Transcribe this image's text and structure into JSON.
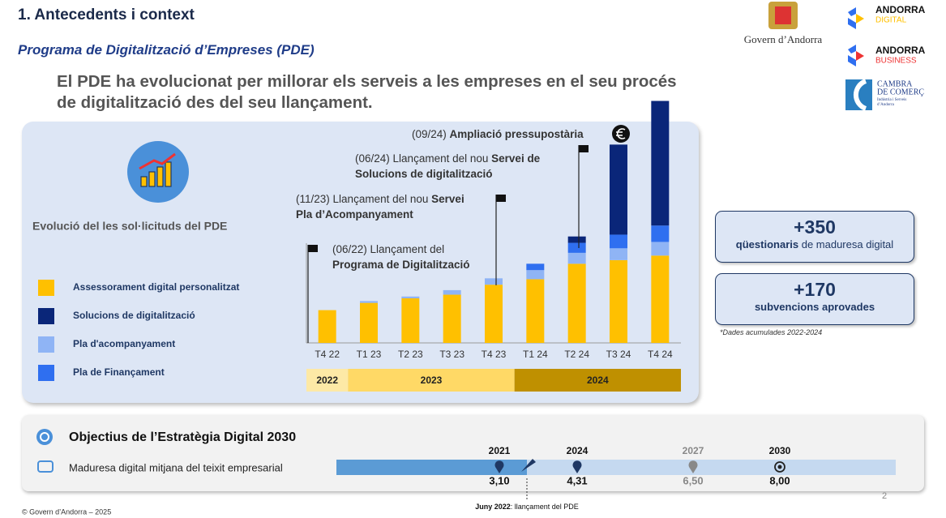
{
  "header": {
    "title": "1. Antecedents i context",
    "subtitle": "Programa de Digitalització d’Empreses (PDE)",
    "statement": "El PDE ha evolucionat per millorar els serveis a les empreses en el seu procés de digitalització des del seu llançament."
  },
  "logos": {
    "govern": "Govern d’Andorra",
    "digital": {
      "name": "ANDORRA",
      "sub": "DIGITAL"
    },
    "business": {
      "name": "ANDORRA",
      "sub": "BUSINESS"
    },
    "cambra": {
      "line1": "CAMBRA",
      "line2": "DE COMERÇ",
      "line3": "Indústria i Serveis",
      "line4": "d’Andorra"
    }
  },
  "panel": {
    "label": "Evolució del les sol·licituds del PDE"
  },
  "chart_data": {
    "type": "bar",
    "stacked": true,
    "categories": [
      "T4 22",
      "T1 23",
      "T2 23",
      "T3 23",
      "T4 23",
      "T1 24",
      "T2 24",
      "T3 24",
      "T4 24"
    ],
    "series": [
      {
        "name": "Assessorament digital personalitzat",
        "color": "#ffc000",
        "values": [
          36,
          44,
          49,
          53,
          64,
          70,
          87,
          91,
          96
        ]
      },
      {
        "name": "Solucions de digitalització",
        "color": "#0a2679",
        "values": [
          0,
          0,
          0,
          0,
          0,
          0,
          7,
          99,
          137
        ]
      },
      {
        "name": "Pla d'acompanyament",
        "color": "#8fb4f5",
        "values": [
          0,
          2,
          2,
          5,
          7,
          10,
          12,
          13,
          15
        ]
      },
      {
        "name": "Pla de Finançament",
        "color": "#2f6ff0",
        "values": [
          0,
          0,
          0,
          0,
          0,
          7,
          11,
          15,
          18
        ]
      }
    ],
    "ylim": [
      0,
      270
    ],
    "years": [
      {
        "label": "2022",
        "color": "#fde9a6"
      },
      {
        "label": "2023",
        "color": "#ffd966"
      },
      {
        "label": "2024",
        "color": "#bf9000"
      }
    ],
    "annotations": [
      {
        "date": "(06/22)",
        "text": "Llançament del",
        "bold": "Programa de Digitalització"
      },
      {
        "date": "(11/23)",
        "text": "Llançament del nou",
        "bold": "Servei Pla d’Acompanyament"
      },
      {
        "date": "(06/24)",
        "text": "Llançament del nou",
        "bold": "Servei de Solucions de digitalització"
      },
      {
        "date": "(09/24)",
        "bold": "Ampliació pressupostària"
      }
    ]
  },
  "kpis": [
    {
      "value": "+350",
      "bold": "qüestionaris",
      "text": "de maduresa digital"
    },
    {
      "value": "+170",
      "bold": "subvencions aprovades"
    }
  ],
  "kpi_note": "*Dades acumulades 2022-2024",
  "objectives": {
    "title": "Objectius de l’Estratègia Digital 2030",
    "row": "Maduresa digital mitjana del teixit empresarial",
    "milestones": [
      {
        "year": "2021",
        "value": "3,10"
      },
      {
        "year": "2024",
        "value": "4,31"
      },
      {
        "year": "2027",
        "value": "6,50"
      },
      {
        "year": "2030",
        "value": "8,00"
      }
    ],
    "note_bold": "Juny 2022",
    "note": ": llançament del PDE"
  },
  "page_number": "2",
  "footer": "© Govern d’Andorra – 2025"
}
